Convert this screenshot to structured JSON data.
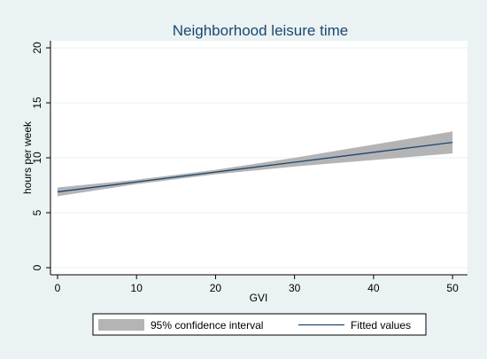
{
  "chart_data": {
    "type": "line",
    "title": "Neighborhood leisure time",
    "xlabel": "GVI",
    "ylabel": "hours per week",
    "xlim": [
      0,
      51
    ],
    "ylim": [
      0,
      20
    ],
    "x_ticks": [
      "0",
      "10",
      "20",
      "30",
      "40",
      "50"
    ],
    "y_ticks": [
      "0",
      "5",
      "10",
      "15",
      "20"
    ],
    "grid": "horizontal",
    "legend_position": "bottom",
    "series": [
      {
        "name": "Fitted values",
        "kind": "line",
        "color": "#1a476f",
        "x": [
          0,
          10,
          20,
          30,
          40,
          50
        ],
        "y": [
          6.9,
          7.8,
          8.7,
          9.6,
          10.5,
          11.4
        ]
      },
      {
        "name": "95% confidence interval",
        "kind": "band",
        "color": "#b4b4b4",
        "x": [
          0,
          10,
          20,
          30,
          40,
          50
        ],
        "lower": [
          6.5,
          7.6,
          8.5,
          9.2,
          9.8,
          10.4
        ],
        "upper": [
          7.3,
          8.0,
          8.9,
          10.0,
          11.2,
          12.4
        ]
      }
    ]
  }
}
